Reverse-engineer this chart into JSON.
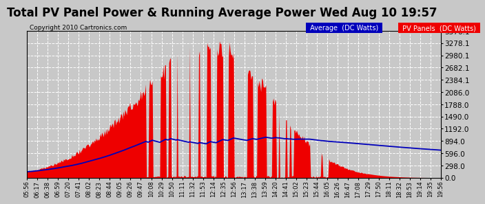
{
  "title": "Total PV Panel Power & Running Average Power Wed Aug 10 19:57",
  "copyright": "Copyright 2010 Cartronics.com",
  "legend_avg": "Average  (DC Watts)",
  "legend_pv": "PV Panels  (DC Watts)",
  "ymax": 3576.1,
  "ymin": 0.0,
  "yticks": [
    0.0,
    298.0,
    596.0,
    894.0,
    1192.0,
    1490.0,
    1788.0,
    2086.0,
    2384.1,
    2682.1,
    2980.1,
    3278.1,
    3576.1
  ],
  "background_color": "#c8c8c8",
  "plot_bg_color": "#c8c8c8",
  "grid_color": "#ffffff",
  "pv_fill_color": "#ee0000",
  "avg_line_color": "#0000bb",
  "title_fontsize": 12,
  "num_points": 500,
  "time_labels": [
    "05:56",
    "06:17",
    "06:38",
    "06:59",
    "07:20",
    "07:41",
    "08:02",
    "08:23",
    "08:44",
    "09:05",
    "09:26",
    "09:47",
    "10:08",
    "10:29",
    "10:50",
    "11:11",
    "11:32",
    "11:53",
    "12:14",
    "12:35",
    "12:56",
    "13:17",
    "13:38",
    "13:59",
    "14:20",
    "14:41",
    "15:02",
    "15:23",
    "15:44",
    "16:05",
    "16:26",
    "16:47",
    "17:08",
    "17:29",
    "17:50",
    "18:11",
    "18:32",
    "18:53",
    "19:14",
    "19:35",
    "19:56"
  ]
}
